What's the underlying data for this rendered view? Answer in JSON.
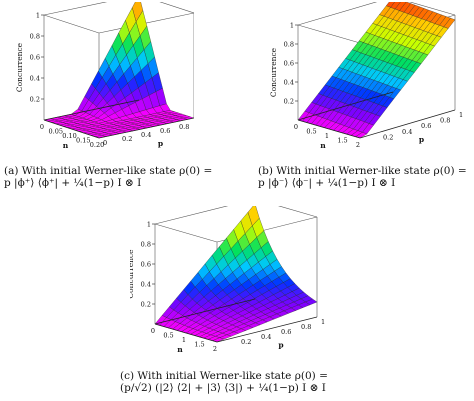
{
  "figure": {
    "panels": [
      {
        "id": "a",
        "caption_line1": "(a)  With  initial  Werner-like  state  ρ(0)  =",
        "caption_line2": "p |ϕ⁺⟩ ⟨ϕ⁺| + ¼(1−p) I ⊗ I",
        "z_label": "Concurrence",
        "n_label": "n",
        "p_label": "p",
        "z_ticks": [
          "0.2",
          "0.4",
          "0.6",
          "0.8",
          "1"
        ],
        "n_ticks": [
          "0",
          "0.05",
          "0.10",
          "0.15",
          "0.20"
        ],
        "p_ticks": [
          "0",
          "0.2",
          "0.4",
          "0.6",
          "0.8",
          "1"
        ]
      },
      {
        "id": "b",
        "caption_line1": "(b)  With  initial  Werner-like  state  ρ(0)  =",
        "caption_line2": "p |ϕ⁻⟩ ⟨ϕ⁻| + ¼(1−p) I ⊗ I",
        "z_label": "Concurrence",
        "n_label": "n",
        "p_label": "p",
        "z_ticks": [
          "0.2",
          "0.4",
          "0.6",
          "0.8",
          "1"
        ],
        "n_ticks": [
          "0",
          "0.5",
          "1",
          "1.5",
          "2"
        ],
        "p_ticks": [
          "0.2",
          "0.4",
          "0.6",
          "0.8",
          "1"
        ]
      },
      {
        "id": "c",
        "caption_line1": "(c)  With  initial  Werner-like  state  ρ(0)  =",
        "caption_line2": "(p/√2) (|2⟩ ⟨2| + |3⟩ ⟨3|) + ¼(1−p) I ⊗ I",
        "z_label": "Concurrence",
        "n_label": "n",
        "p_label": "p",
        "z_ticks": [
          "0.2",
          "0.4",
          "0.6",
          "0.8",
          "1"
        ],
        "n_ticks": [
          "0",
          "0.5",
          "1",
          "1.5",
          "2"
        ],
        "p_ticks": [
          "0.2",
          "0.4",
          "0.6",
          "0.8",
          "1"
        ]
      }
    ]
  },
  "colors": {
    "colormap": [
      "#ff00ff",
      "#8000ff",
      "#0033ff",
      "#00c8ff",
      "#00e060",
      "#c8ff00",
      "#ffd000",
      "#ff2000"
    ],
    "wire": "#222222",
    "box": "#555555"
  }
}
